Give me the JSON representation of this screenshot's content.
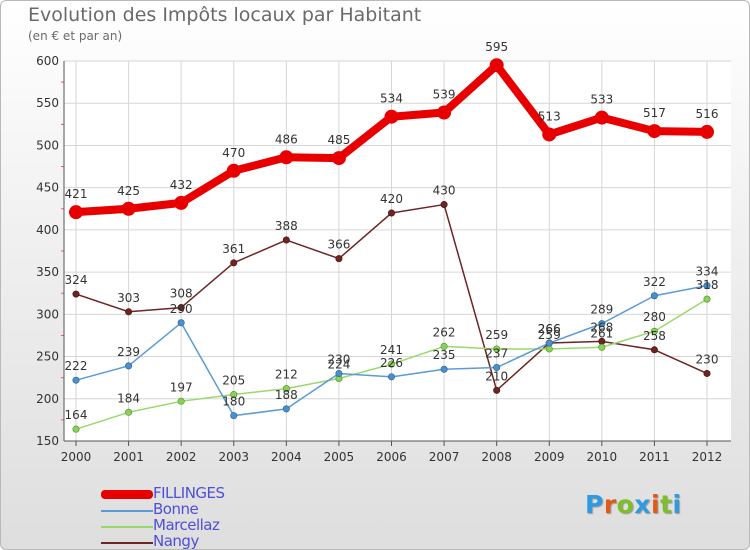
{
  "title": "Evolution des Impôts locaux par Habitant",
  "subtitle": "(en € et par an)",
  "logo": {
    "text": "Proxiti",
    "letter_colors": [
      "#2e9be0",
      "#e05a1a",
      "#7cbf2a",
      "#2e9be0",
      "#e05a1a",
      "#7cbf2a",
      "#2e9be0"
    ]
  },
  "chart_data": {
    "type": "line",
    "title": "Evolution des Impôts locaux par Habitant",
    "subtitle": "(en € et par an)",
    "xlabel": "",
    "ylabel": "",
    "categories": [
      "2000",
      "2001",
      "2002",
      "2003",
      "2004",
      "2005",
      "2006",
      "2007",
      "2008",
      "2009",
      "2010",
      "2011",
      "2012"
    ],
    "ylim": [
      150,
      600
    ],
    "yticks": [
      150,
      200,
      250,
      300,
      350,
      400,
      450,
      500,
      550,
      600
    ],
    "grid": true,
    "legend_position": "bottom-left",
    "series": [
      {
        "name": "FILLINGES",
        "color": "#e80000",
        "values": [
          421,
          425,
          432,
          470,
          486,
          485,
          534,
          539,
          595,
          513,
          533,
          517,
          516
        ],
        "labels": [
          "421",
          "425",
          "432",
          "470",
          "486",
          "485",
          "534",
          "539",
          "595",
          "513",
          "533",
          "517",
          "516"
        ]
      },
      {
        "name": "Bonne",
        "color": "#5a9bd5",
        "values": [
          222,
          239,
          290,
          180,
          188,
          230,
          226,
          235,
          237,
          266,
          289,
          322,
          334
        ],
        "labels": [
          "222",
          "239",
          "290",
          "180",
          "188",
          "230",
          "226",
          "235",
          "237",
          "266",
          "289",
          "322",
          "334"
        ]
      },
      {
        "name": "Marcellaz",
        "color": "#9ad86b",
        "values": [
          164,
          184,
          197,
          205,
          212,
          224,
          241,
          262,
          259,
          259,
          261,
          280,
          318
        ],
        "labels": [
          "164",
          "184",
          "197",
          "205",
          "212",
          "224",
          "241",
          "262",
          "259",
          "259",
          "261",
          "280",
          "318"
        ]
      },
      {
        "name": "Nangy",
        "color": "#6e2424",
        "values": [
          324,
          303,
          308,
          361,
          388,
          366,
          420,
          430,
          210,
          266,
          268,
          258,
          230
        ],
        "labels": [
          "324",
          "303",
          "308",
          "361",
          "388",
          "366",
          "420",
          "430",
          "210",
          "266",
          "268",
          "258",
          "230"
        ]
      }
    ]
  }
}
